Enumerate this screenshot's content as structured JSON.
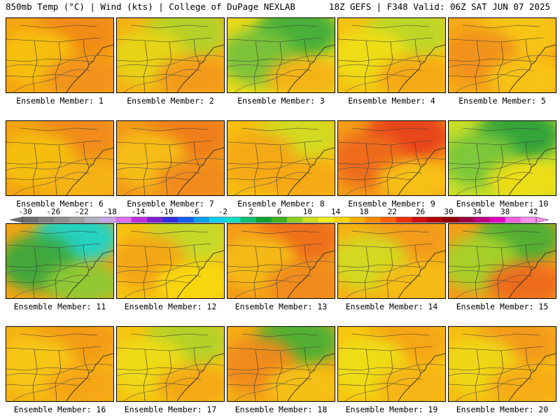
{
  "header": {
    "left": "850mb Temp (°C) | Wind (kts) | College of DuPage NEXLAB",
    "right": "18Z GEFS | F348 Valid: 06Z SAT JUN 07 2025"
  },
  "colorbar": {
    "ticks": [
      "-30",
      "-26",
      "-22",
      "-18",
      "-14",
      "-10",
      "-6",
      "-2",
      "2",
      "6",
      "10",
      "14",
      "18",
      "22",
      "26",
      "30",
      "34",
      "38",
      "42"
    ],
    "colors": [
      "#6e6e6e",
      "#7f7f7f",
      "#8f8f8f",
      "#a0a0a0",
      "#b1b1c4",
      "#c6a6e6",
      "#e070f0",
      "#c030e0",
      "#8020d0",
      "#3030e0",
      "#1060f0",
      "#10a0f0",
      "#10d0f0",
      "#10e0c0",
      "#10c070",
      "#10a030",
      "#40b020",
      "#90d020",
      "#d0e020",
      "#f0f020",
      "#ffd800",
      "#ffb000",
      "#ff8c00",
      "#ff6000",
      "#f03000",
      "#d01010",
      "#b00000",
      "#900000",
      "#a00040",
      "#c00080",
      "#e000c0",
      "#f060e0",
      "#ff90f0"
    ]
  },
  "panels": [
    {
      "label": "Ensemble Member: 1",
      "base": "#f6a512",
      "blobs": [
        {
          "c": "#f08a14"
        },
        {
          "c": "#f7c010"
        },
        {
          "c": "#f2921a"
        }
      ]
    },
    {
      "label": "Ensemble Member: 2",
      "base": "#f5b214",
      "blobs": [
        {
          "c": "#b2d22a"
        },
        {
          "c": "#e6d415"
        },
        {
          "c": "#f39a1a"
        }
      ]
    },
    {
      "label": "Ensemble Member: 3",
      "base": "#e7da1a",
      "blobs": [
        {
          "c": "#3fae3a"
        },
        {
          "c": "#78c23a"
        },
        {
          "c": "#f5b314"
        }
      ]
    },
    {
      "label": "Ensemble Member: 4",
      "base": "#f4c212",
      "blobs": [
        {
          "c": "#bcd82a"
        },
        {
          "c": "#eede18"
        },
        {
          "c": "#f5a814"
        }
      ]
    },
    {
      "label": "Ensemble Member: 5",
      "base": "#f6ab14",
      "blobs": [
        {
          "c": "#f7c612"
        },
        {
          "c": "#f1921a"
        },
        {
          "c": "#f8c413"
        }
      ]
    },
    {
      "label": "Ensemble Member: 6",
      "base": "#f4a314",
      "blobs": [
        {
          "c": "#f08a1c"
        },
        {
          "c": "#f5c011"
        },
        {
          "c": "#f6b414"
        }
      ]
    },
    {
      "label": "Ensemble Member: 7",
      "base": "#f29a1a",
      "blobs": [
        {
          "c": "#ef7e1e"
        },
        {
          "c": "#f6c012"
        },
        {
          "c": "#f18a1a"
        }
      ]
    },
    {
      "label": "Ensemble Member: 8",
      "base": "#f7be12",
      "blobs": [
        {
          "c": "#d2dc22"
        },
        {
          "c": "#f5a814"
        },
        {
          "c": "#f6a814"
        }
      ]
    },
    {
      "label": "Ensemble Member: 9",
      "base": "#f39c18",
      "blobs": [
        {
          "c": "#e8421e"
        },
        {
          "c": "#ee6a1e"
        },
        {
          "c": "#f7c212"
        }
      ]
    },
    {
      "label": "Ensemble Member: 10",
      "base": "#c9de28",
      "blobs": [
        {
          "c": "#2fa23a"
        },
        {
          "c": "#7cc83a"
        },
        {
          "c": "#eede16"
        }
      ]
    },
    {
      "label": "Ensemble Member: 11",
      "base": "#f2a516",
      "blobs": [
        {
          "c": "#1cd4c8"
        },
        {
          "c": "#3aa83c"
        },
        {
          "c": "#8ccb34"
        }
      ]
    },
    {
      "label": "Ensemble Member: 12",
      "base": "#f6c412",
      "blobs": [
        {
          "c": "#c4da2a"
        },
        {
          "c": "#f4a614"
        },
        {
          "c": "#f8d810"
        }
      ]
    },
    {
      "label": "Ensemble Member: 13",
      "base": "#f29a1a",
      "blobs": [
        {
          "c": "#ee6e1e"
        },
        {
          "c": "#f5bc12"
        },
        {
          "c": "#f08a1c"
        }
      ]
    },
    {
      "label": "Ensemble Member: 14",
      "base": "#f5b214",
      "blobs": [
        {
          "c": "#f39a1a"
        },
        {
          "c": "#d2dc22"
        },
        {
          "c": "#f6bc12"
        }
      ]
    },
    {
      "label": "Ensemble Member: 15",
      "base": "#f39c18",
      "blobs": [
        {
          "c": "#4cb036"
        },
        {
          "c": "#a6d22c"
        },
        {
          "c": "#ee6a1e"
        }
      ]
    },
    {
      "label": "Ensemble Member: 16",
      "base": "#f6b414",
      "blobs": [
        {
          "c": "#f39c18"
        },
        {
          "c": "#f7c812"
        },
        {
          "c": "#f5a616"
        }
      ]
    },
    {
      "label": "Ensemble Member: 17",
      "base": "#f5c412",
      "blobs": [
        {
          "c": "#b2d22a"
        },
        {
          "c": "#eedc16"
        },
        {
          "c": "#f5a816"
        }
      ]
    },
    {
      "label": "Ensemble Member: 18",
      "base": "#f4ac16",
      "blobs": [
        {
          "c": "#4cb036"
        },
        {
          "c": "#f08a1a"
        },
        {
          "c": "#f6c212"
        }
      ]
    },
    {
      "label": "Ensemble Member: 19",
      "base": "#f7c612",
      "blobs": [
        {
          "c": "#f5a616"
        },
        {
          "c": "#eede18"
        },
        {
          "c": "#f6b414"
        }
      ]
    },
    {
      "label": "Ensemble Member: 20",
      "base": "#f6be12",
      "blobs": [
        {
          "c": "#f39a1a"
        },
        {
          "c": "#eed818"
        },
        {
          "c": "#f6ac14"
        }
      ]
    }
  ]
}
